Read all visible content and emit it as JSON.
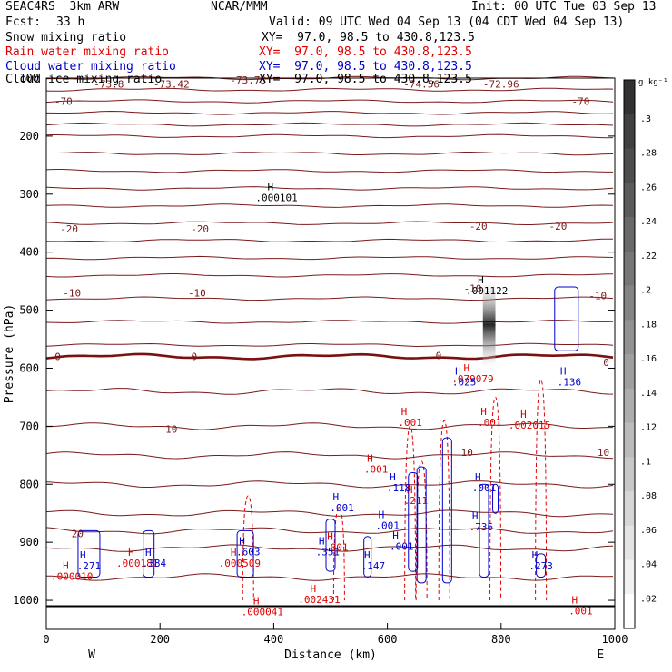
{
  "header": {
    "model": "SEAC4RS  3km ARW",
    "org": "NCAR/MMM",
    "init": "Init: 00 UTC Tue 03 Sep 13",
    "fcst_label": "Fcst:",
    "fcst_value": "33 h",
    "valid": "Valid: 09 UTC Wed 04 Sep 13 (04 CDT Wed 04 Sep 13)"
  },
  "fields": [
    {
      "label": "Snow mixing ratio",
      "xy": "XY=  97.0, 98.5 to 430.8,123.5",
      "color": "#000000"
    },
    {
      "label": "Rain water mixing ratio",
      "xy": "XY=  97.0, 98.5 to 430.8,123.5",
      "color": "#e00000"
    },
    {
      "label": "Cloud water mixing ratio",
      "xy": "XY=  97.0, 98.5 to 430.8,123.5",
      "color": "#0000cc"
    },
    {
      "label": "Cloud ice mixing ratio",
      "xy": "XY=  97.0, 98.5 to 430.8,123.5",
      "color": "#000000"
    }
  ],
  "chart_data": {
    "type": "cross-section",
    "xlabel": "Distance (km)",
    "ylabel": "Pressure (hPa)",
    "xlim": [
      0,
      1000
    ],
    "ylim": [
      100,
      1050
    ],
    "xticks": [
      0,
      200,
      400,
      600,
      800,
      1000
    ],
    "yticks": [
      100,
      200,
      300,
      400,
      500,
      600,
      700,
      800,
      900,
      1000
    ],
    "x_end_labels": {
      "left": "W",
      "right": "E"
    },
    "colorbar": {
      "unit": "g kg⁻¹",
      "ticks": [
        ".3",
        ".28",
        ".26",
        ".24",
        ".22",
        ".2",
        ".18",
        ".16",
        ".14",
        ".12",
        ".1",
        ".08",
        ".06",
        ".04",
        ".02"
      ]
    },
    "temperature_contour_labels": [
      {
        "x": 110,
        "p": 110,
        "text": "-73.8"
      },
      {
        "x": 220,
        "p": 110,
        "text": "-73.42"
      },
      {
        "x": 355,
        "p": 103,
        "text": "-73.73"
      },
      {
        "x": 660,
        "p": 110,
        "text": "-74.56"
      },
      {
        "x": 800,
        "p": 110,
        "text": "-72.96"
      },
      {
        "x": 30,
        "p": 140,
        "text": "-70"
      },
      {
        "x": 940,
        "p": 140,
        "text": "-70"
      },
      {
        "x": 40,
        "p": 360,
        "text": "-20"
      },
      {
        "x": 270,
        "p": 360,
        "text": "-20"
      },
      {
        "x": 760,
        "p": 355,
        "text": "-20"
      },
      {
        "x": 900,
        "p": 355,
        "text": "-20"
      },
      {
        "x": 45,
        "p": 470,
        "text": "-10"
      },
      {
        "x": 265,
        "p": 470,
        "text": "-10"
      },
      {
        "x": 750,
        "p": 462,
        "text": "-10"
      },
      {
        "x": 970,
        "p": 475,
        "text": "-10"
      },
      {
        "x": 20,
        "p": 580,
        "text": "0"
      },
      {
        "x": 260,
        "p": 580,
        "text": "0"
      },
      {
        "x": 690,
        "p": 578,
        "text": "0"
      },
      {
        "x": 985,
        "p": 590,
        "text": "0"
      },
      {
        "x": 220,
        "p": 705,
        "text": "10"
      },
      {
        "x": 740,
        "p": 745,
        "text": "10"
      },
      {
        "x": 980,
        "p": 745,
        "text": "10"
      },
      {
        "x": 55,
        "p": 885,
        "text": "20"
      }
    ],
    "maxima_labels": [
      {
        "x": 405,
        "p": 303,
        "text": ".000101",
        "color": "#000000"
      },
      {
        "x": 775,
        "p": 463,
        "text": ".001122",
        "color": "#000000"
      },
      {
        "x": 750,
        "p": 615,
        "text": ".079079",
        "color": "#e00000"
      },
      {
        "x": 850,
        "p": 695,
        "text": ".002015",
        "color": "#e00000"
      },
      {
        "x": 45,
        "p": 955,
        "text": ".000010",
        "color": "#e00000"
      },
      {
        "x": 160,
        "p": 933,
        "text": ".000181",
        "color": "#e00000"
      },
      {
        "x": 340,
        "p": 933,
        "text": ".000509",
        "color": "#e00000"
      },
      {
        "x": 480,
        "p": 995,
        "text": ".002431",
        "color": "#e00000"
      },
      {
        "x": 380,
        "p": 1016,
        "text": ".000041",
        "color": "#e00000"
      },
      {
        "x": 580,
        "p": 771,
        "text": ".001",
        "color": "#e00000"
      },
      {
        "x": 640,
        "p": 690,
        "text": ".001",
        "color": "#e00000"
      },
      {
        "x": 780,
        "p": 690,
        "text": ".001",
        "color": "#e00000"
      },
      {
        "x": 940,
        "p": 1015,
        "text": ".001",
        "color": "#e00000"
      },
      {
        "x": 510,
        "p": 905,
        "text": ".001",
        "color": "#e00000"
      },
      {
        "x": 650,
        "p": 825,
        "text": ".211",
        "color": "#e00000"
      },
      {
        "x": 735,
        "p": 620,
        "text": ".025",
        "color": "#0000cc"
      },
      {
        "x": 920,
        "p": 620,
        "text": ".136",
        "color": "#0000cc"
      },
      {
        "x": 770,
        "p": 803,
        "text": ".001",
        "color": "#0000cc"
      },
      {
        "x": 620,
        "p": 803,
        "text": ".118",
        "color": "#0000cc"
      },
      {
        "x": 520,
        "p": 837,
        "text": ".001",
        "color": "#0000cc"
      },
      {
        "x": 600,
        "p": 868,
        "text": ".001",
        "color": "#0000cc"
      },
      {
        "x": 625,
        "p": 904,
        "text": ".001",
        "color": "#0000cc"
      },
      {
        "x": 765,
        "p": 870,
        "text": ".736",
        "color": "#0000cc"
      },
      {
        "x": 870,
        "p": 937,
        "text": ".273",
        "color": "#0000cc"
      },
      {
        "x": 575,
        "p": 937,
        "text": ".147",
        "color": "#0000cc"
      },
      {
        "x": 495,
        "p": 913,
        "text": ".351",
        "color": "#0000cc"
      },
      {
        "x": 355,
        "p": 913,
        "text": ".603",
        "color": "#0000cc"
      },
      {
        "x": 190,
        "p": 933,
        "text": ".384",
        "color": "#0000cc"
      },
      {
        "x": 75,
        "p": 937,
        "text": ".271",
        "color": "#0000cc"
      }
    ]
  }
}
